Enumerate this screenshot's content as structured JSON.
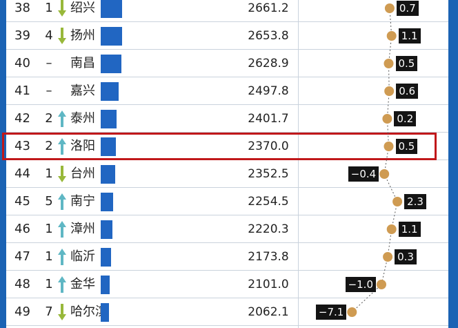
{
  "colors": {
    "bar": "#2166c2",
    "down": "#98b83a",
    "up": "#5fb7c4",
    "dot": "#cf9b52",
    "highlight": "#c0171a",
    "label_bg": "#141414"
  },
  "chart_data": {
    "type": "table",
    "columns": [
      "rank",
      "change",
      "city",
      "value",
      "growth"
    ],
    "rows": [
      {
        "rank": "38",
        "change": "1",
        "direction": "down",
        "city": "绍兴",
        "value": "2661.2",
        "growth": "0.7"
      },
      {
        "rank": "39",
        "change": "4",
        "direction": "down",
        "city": "扬州",
        "value": "2653.8",
        "growth": "1.1"
      },
      {
        "rank": "40",
        "change": "–",
        "direction": "none",
        "city": "南昌",
        "value": "2628.9",
        "growth": "0.5"
      },
      {
        "rank": "41",
        "change": "–",
        "direction": "none",
        "city": "嘉兴",
        "value": "2497.8",
        "growth": "0.6"
      },
      {
        "rank": "42",
        "change": "2",
        "direction": "up",
        "city": "泰州",
        "value": "2401.7",
        "growth": "0.2"
      },
      {
        "rank": "43",
        "change": "2",
        "direction": "up",
        "city": "洛阳",
        "value": "2370.0",
        "growth": "0.5",
        "highlight": true
      },
      {
        "rank": "44",
        "change": "1",
        "direction": "down",
        "city": "台州",
        "value": "2352.5",
        "growth": "−0.4"
      },
      {
        "rank": "45",
        "change": "5",
        "direction": "up",
        "city": "南宁",
        "value": "2254.5",
        "growth": "2.3"
      },
      {
        "rank": "46",
        "change": "1",
        "direction": "up",
        "city": "漳州",
        "value": "2220.3",
        "growth": "1.1"
      },
      {
        "rank": "47",
        "change": "1",
        "direction": "up",
        "city": "临沂",
        "value": "2173.8",
        "growth": "0.3"
      },
      {
        "rank": "48",
        "change": "1",
        "direction": "up",
        "city": "金华",
        "value": "2101.0",
        "growth": "−1.0"
      },
      {
        "rank": "49",
        "change": "7",
        "direction": "down",
        "city": "哈尔滨",
        "value": "2062.1",
        "growth": "−7.1"
      }
    ]
  }
}
